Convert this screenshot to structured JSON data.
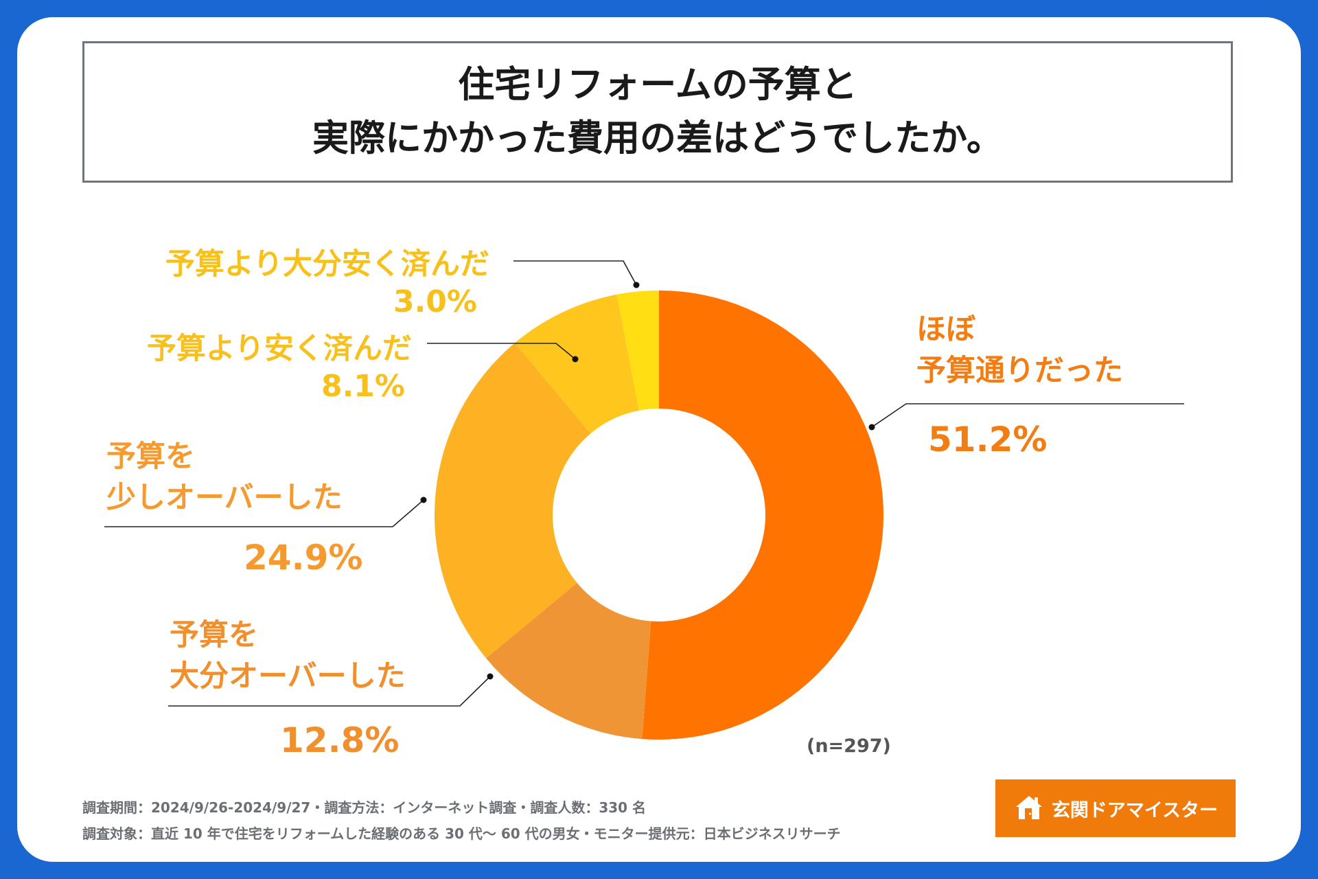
{
  "title": {
    "line1": "住宅リフォームの予算と",
    "line2": "実際にかかった費用の差はどうでしたか。"
  },
  "chart_data": {
    "type": "donut",
    "title": "住宅リフォームの予算と実際にかかった費用の差はどうでしたか。",
    "n_label": "(n=297)",
    "unit": "%",
    "slices": [
      {
        "label_lines": [
          "ほぼ",
          "予算通りだった"
        ],
        "value": 51.2,
        "pct_text": "51.2%",
        "color": "#ff7300",
        "text_color": "#f27d12"
      },
      {
        "label_lines": [
          "予算を",
          "大分オーバーした"
        ],
        "value": 12.8,
        "pct_text": "12.8%",
        "color": "#f09535",
        "text_color": "#f08f2e"
      },
      {
        "label_lines": [
          "予算を",
          "少しオーバーした"
        ],
        "value": 24.9,
        "pct_text": "24.9%",
        "color": "#fdb223",
        "text_color": "#f59a30"
      },
      {
        "label_lines": [
          "予算より安く済んだ"
        ],
        "value": 8.1,
        "pct_text": "8.1%",
        "color": "#ffc61e",
        "text_color": "#f7c01a"
      },
      {
        "label_lines": [
          "予算より大分安く済んだ"
        ],
        "value": 3.0,
        "pct_text": "3.0%",
        "color": "#ffde14",
        "text_color": "#f7c01a"
      }
    ]
  },
  "footer": {
    "line1": "調査期間：2024/9/26-2024/9/27・調査方法：インターネット調査・調査人数：330 名",
    "line2": "調査対象：直近 10 年で住宅をリフォームした経験のある 30 代～ 60 代の男女・モニター提供元：日本ビジネスリサーチ"
  },
  "logo": {
    "text": "玄関ドアマイスター",
    "icon": "house-icon",
    "bg_color": "#f07a0a"
  }
}
